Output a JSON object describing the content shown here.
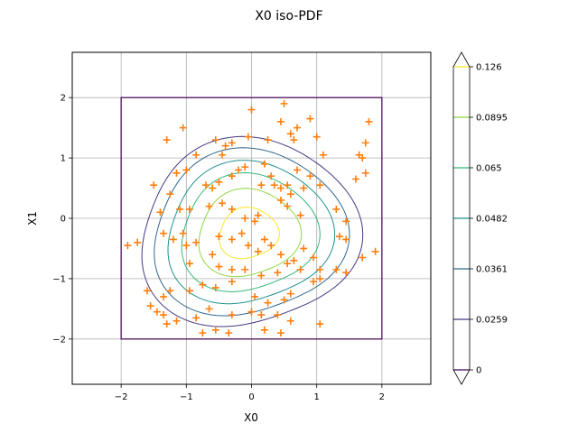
{
  "chart_data": {
    "type": "contour",
    "title": "X0 iso-PDF",
    "xlabel": "X0",
    "ylabel": "X1",
    "xlim": [
      -2.75,
      2.75
    ],
    "ylim": [
      -2.75,
      2.75
    ],
    "xticks": [
      -2,
      -1,
      0,
      1,
      2
    ],
    "yticks": [
      -2,
      -1,
      0,
      1,
      2
    ],
    "grid": true,
    "support_box": {
      "x": [
        -2,
        2
      ],
      "y": [
        -2,
        2
      ]
    },
    "contour_levels": [
      0,
      0.0259,
      0.0361,
      0.0482,
      0.065,
      0.0895,
      0.126
    ],
    "contour_level_labels": [
      "0",
      "0.0259",
      "0.0361",
      "0.0482",
      "0.065",
      "0.0895",
      "0.126"
    ],
    "contour_colors": [
      "#440154",
      "#443983",
      "#31688e",
      "#21918c",
      "#35b779",
      "#90d743",
      "#fde725"
    ],
    "contour_center": [
      -0.05,
      -0.25
    ],
    "contour_radii": [
      1.55,
      1.37,
      1.17,
      0.97,
      0.72,
      0.42
    ],
    "colorbar": {
      "min": 0,
      "max": 0.126,
      "extend": "both"
    },
    "sample_color": "#ff7f0e",
    "samples": [
      [
        0.0,
        1.8
      ],
      [
        0.5,
        1.9
      ],
      [
        0.45,
        1.6
      ],
      [
        0.7,
        1.5
      ],
      [
        0.9,
        1.65
      ],
      [
        1.8,
        1.6
      ],
      [
        1.75,
        1.25
      ],
      [
        1.0,
        1.35
      ],
      [
        -1.3,
        1.3
      ],
      [
        -1.05,
        1.5
      ],
      [
        -0.85,
        1.05
      ],
      [
        -0.55,
        1.3
      ],
      [
        -0.45,
        1.05
      ],
      [
        -0.4,
        1.2
      ],
      [
        -0.3,
        1.25
      ],
      [
        -0.05,
        1.35
      ],
      [
        0.25,
        1.3
      ],
      [
        0.65,
        1.3
      ],
      [
        0.6,
        1.4
      ],
      [
        1.65,
        1.05
      ],
      [
        1.7,
        1.0
      ],
      [
        1.75,
        0.75
      ],
      [
        1.6,
        0.65
      ],
      [
        1.1,
        1.05
      ],
      [
        -1.5,
        0.55
      ],
      [
        -1.25,
        0.4
      ],
      [
        -1.15,
        0.75
      ],
      [
        -1.0,
        0.8
      ],
      [
        -0.7,
        0.55
      ],
      [
        -0.6,
        0.5
      ],
      [
        -0.5,
        0.6
      ],
      [
        -0.3,
        0.7
      ],
      [
        -0.2,
        0.8
      ],
      [
        -0.1,
        0.85
      ],
      [
        0.2,
        0.9
      ],
      [
        0.3,
        0.7
      ],
      [
        0.35,
        0.55
      ],
      [
        0.45,
        0.5
      ],
      [
        0.55,
        0.55
      ],
      [
        0.6,
        0.4
      ],
      [
        0.7,
        0.8
      ],
      [
        0.8,
        0.5
      ],
      [
        0.9,
        0.7
      ],
      [
        1.05,
        0.55
      ],
      [
        0.15,
        0.55
      ],
      [
        -1.4,
        0.1
      ],
      [
        -1.1,
        0.15
      ],
      [
        -0.95,
        0.15
      ],
      [
        -0.65,
        0.2
      ],
      [
        -0.45,
        0.25
      ],
      [
        -0.3,
        0.15
      ],
      [
        -0.1,
        0.0
      ],
      [
        0.1,
        0.05
      ],
      [
        0.05,
        -0.05
      ],
      [
        0.45,
        0.3
      ],
      [
        0.55,
        0.2
      ],
      [
        0.75,
        0.05
      ],
      [
        1.3,
        0.15
      ],
      [
        1.45,
        -0.05
      ],
      [
        1.35,
        -0.3
      ],
      [
        1.45,
        -0.35
      ],
      [
        1.9,
        -0.55
      ],
      [
        -1.9,
        -0.45
      ],
      [
        -1.75,
        -0.4
      ],
      [
        -1.35,
        -0.25
      ],
      [
        -1.2,
        -0.35
      ],
      [
        -1.05,
        -0.25
      ],
      [
        -1.0,
        -0.45
      ],
      [
        -0.85,
        -0.4
      ],
      [
        -0.5,
        -0.3
      ],
      [
        -0.3,
        -0.35
      ],
      [
        -0.15,
        -0.25
      ],
      [
        -0.05,
        -0.45
      ],
      [
        0.2,
        -0.35
      ],
      [
        0.3,
        -0.45
      ],
      [
        0.1,
        -0.55
      ],
      [
        0.45,
        -0.6
      ],
      [
        0.55,
        -0.75
      ],
      [
        0.65,
        -0.7
      ],
      [
        0.8,
        -0.5
      ],
      [
        0.95,
        -0.65
      ],
      [
        1.05,
        -0.85
      ],
      [
        1.3,
        -0.85
      ],
      [
        1.45,
        -0.9
      ],
      [
        1.7,
        -0.65
      ],
      [
        -0.95,
        -0.75
      ],
      [
        -0.6,
        -0.6
      ],
      [
        -0.5,
        -0.8
      ],
      [
        -0.3,
        -0.85
      ],
      [
        -0.1,
        -0.85
      ],
      [
        0.15,
        -0.95
      ],
      [
        0.4,
        -0.9
      ],
      [
        0.75,
        -0.85
      ],
      [
        0.95,
        -1.05
      ],
      [
        1.05,
        -1.0
      ],
      [
        -1.6,
        -1.2
      ],
      [
        -1.35,
        -1.3
      ],
      [
        -1.25,
        -1.2
      ],
      [
        -0.95,
        -1.2
      ],
      [
        -0.75,
        -1.1
      ],
      [
        -0.55,
        -1.15
      ],
      [
        -0.3,
        -1.05
      ],
      [
        0.05,
        -1.3
      ],
      [
        0.25,
        -1.4
      ],
      [
        0.5,
        -1.35
      ],
      [
        0.6,
        -1.25
      ],
      [
        -1.55,
        -1.45
      ],
      [
        -1.45,
        -1.55
      ],
      [
        -1.35,
        -1.6
      ],
      [
        -1.15,
        -1.7
      ],
      [
        -0.85,
        -1.65
      ],
      [
        -0.65,
        -1.5
      ],
      [
        -0.3,
        -1.6
      ],
      [
        0.0,
        -1.55
      ],
      [
        0.15,
        -1.6
      ],
      [
        0.4,
        -1.6
      ],
      [
        0.6,
        -1.7
      ],
      [
        1.05,
        -1.75
      ],
      [
        -1.3,
        -1.75
      ],
      [
        -0.75,
        -1.9
      ],
      [
        -0.55,
        -1.85
      ],
      [
        -0.35,
        -1.9
      ],
      [
        0.2,
        -1.85
      ],
      [
        0.45,
        -1.9
      ]
    ]
  }
}
